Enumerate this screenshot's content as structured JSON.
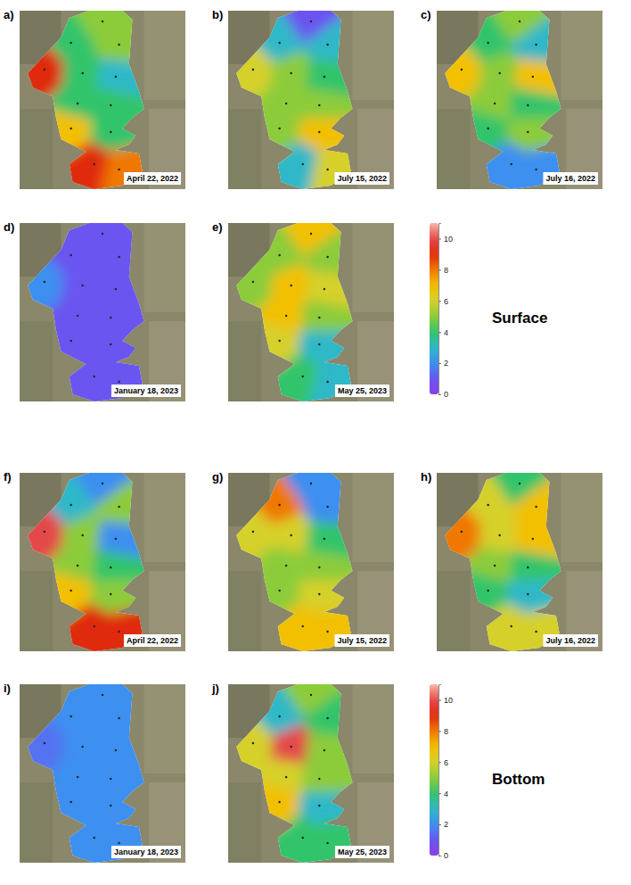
{
  "chart_data": {
    "type": "map",
    "groups": [
      {
        "label": "Surface",
        "colorbar": {
          "lim": [
            0,
            11
          ],
          "ticks": [
            0,
            2,
            4,
            6,
            8,
            10
          ]
        },
        "panels": [
          {
            "letter": "a)",
            "date": "April 22, 2022",
            "values": [
              5,
              4,
              5,
              9,
              4,
              3,
              4,
              4,
              7,
              4,
              9,
              8
            ]
          },
          {
            "letter": "b)",
            "date": "July 15, 2022",
            "values": [
              1,
              3,
              3,
              6,
              5,
              4,
              5,
              5,
              5,
              7,
              3,
              6
            ]
          },
          {
            "letter": "c)",
            "date": "July 16, 2022",
            "values": [
              5,
              4,
              3,
              7,
              5,
              7,
              5,
              4,
              4,
              5,
              2,
              2
            ]
          },
          {
            "letter": "d)",
            "date": "January 18, 2023",
            "values": [
              1,
              1,
              1,
              2,
              1,
              1,
              1,
              1,
              1,
              1,
              1,
              1
            ]
          },
          {
            "letter": "e)",
            "date": "May 25, 2023",
            "values": [
              7,
              5,
              5,
              5,
              7,
              6,
              7,
              5,
              6,
              3,
              4,
              3
            ]
          }
        ]
      },
      {
        "label": "Bottom",
        "colorbar": {
          "lim": [
            0,
            11
          ],
          "ticks": [
            0,
            2,
            4,
            6,
            8,
            10
          ]
        },
        "panels": [
          {
            "letter": "f)",
            "date": "April 22, 2022",
            "values": [
              2,
              3,
              5,
              10,
              5,
              2,
              5,
              4,
              7,
              5,
              9,
              9
            ]
          },
          {
            "letter": "g)",
            "date": "July 15, 2022",
            "values": [
              2,
              8,
              2,
              6,
              6,
              4,
              5,
              5,
              5,
              6,
              7,
              7
            ]
          },
          {
            "letter": "h)",
            "date": "July 16, 2022",
            "values": [
              4,
              6,
              7,
              8,
              6,
              7,
              5,
              4,
              4,
              3,
              6,
              6
            ]
          },
          {
            "letter": "i)",
            "date": "January 18, 2023",
            "values": [
              2,
              2,
              2,
              1.5,
              2,
              2,
              2,
              2,
              2,
              2,
              2,
              2
            ]
          },
          {
            "letter": "j)",
            "date": "May 25, 2023",
            "values": [
              5,
              3,
              4,
              6,
              10,
              5,
              6,
              5,
              7,
              3,
              4,
              4
            ]
          }
        ]
      }
    ]
  }
}
